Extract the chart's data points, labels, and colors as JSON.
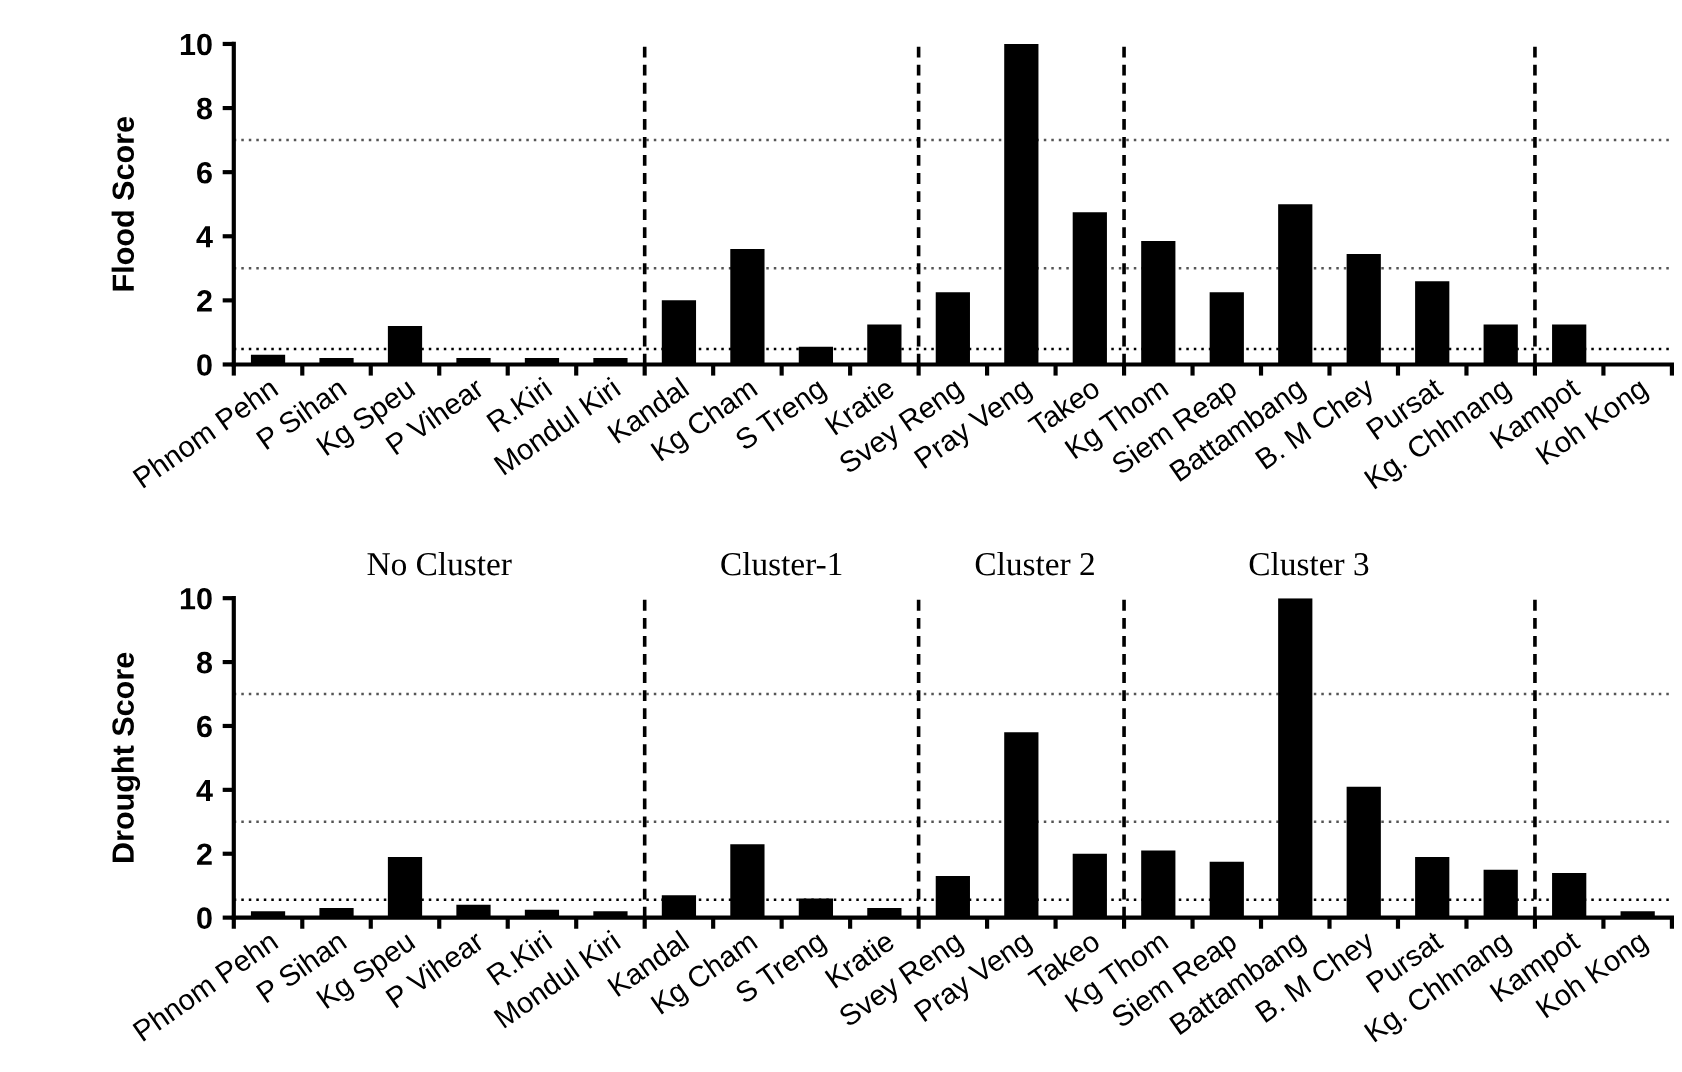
{
  "chart_data": [
    {
      "type": "bar",
      "ylabel": "Flood Score",
      "categories": [
        "Phnom Pehn",
        "P Sihan",
        "Kg Speu",
        "P Vihear",
        "R.Kiri",
        "Mondul Kiri",
        "Kandal",
        "Kg Cham",
        "S Treng",
        "Kratie",
        "Svey Reng",
        "Pray Veng",
        "Takeo",
        "Kg Thom",
        "Siem Reap",
        "Battambang",
        "B. M Chey",
        "Pursat",
        "Kg. Chhnang",
        "Kampot",
        "Koh Kong"
      ],
      "values": [
        0.3,
        0.2,
        1.2,
        0.2,
        0.2,
        0.2,
        2.0,
        3.6,
        0.55,
        1.25,
        2.25,
        10.0,
        4.75,
        3.85,
        2.25,
        5.0,
        3.45,
        2.6,
        1.25,
        1.25,
        0.05
      ],
      "color": "#000000",
      "ylim": [
        0,
        10
      ],
      "yticks": [
        0,
        2,
        4,
        6,
        8,
        10
      ],
      "grid": false,
      "ref_lines": [
        {
          "axis": "y",
          "value": 7,
          "line_style": "dotted",
          "color": "#555555"
        },
        {
          "axis": "y",
          "value": 3,
          "line_style": "dotted",
          "color": "#555555"
        },
        {
          "axis": "y",
          "value": 0.48,
          "line_style": "dotted",
          "color": "#000000"
        }
      ]
    },
    {
      "type": "bar",
      "ylabel": "Drought Score",
      "categories": [
        "Phnom Pehn",
        "P Sihan",
        "Kg Speu",
        "P Vihear",
        "R.Kiri",
        "Mondul Kiri",
        "Kandal",
        "Kg Cham",
        "S Treng",
        "Kratie",
        "Svey Reng",
        "Pray Veng",
        "Takeo",
        "Kg Thom",
        "Siem Reap",
        "Battambang",
        "B. M Chey",
        "Pursat",
        "Kg. Chhnang",
        "Kampot",
        "Koh Kong"
      ],
      "values": [
        0.2,
        0.3,
        1.9,
        0.4,
        0.25,
        0.2,
        0.7,
        2.3,
        0.6,
        0.3,
        1.3,
        5.8,
        2.0,
        2.1,
        1.75,
        10.0,
        4.1,
        1.9,
        1.5,
        1.4,
        0.2
      ],
      "color": "#000000",
      "ylim": [
        0,
        10
      ],
      "yticks": [
        0,
        2,
        4,
        6,
        8,
        10
      ],
      "grid": false,
      "annotations": [
        "No Cluster",
        "Cluster-1",
        "Cluster 2",
        "Cluster 3"
      ],
      "ref_lines": [
        {
          "axis": "y",
          "value": 7,
          "line_style": "dotted",
          "color": "#555555"
        },
        {
          "axis": "y",
          "value": 3,
          "line_style": "dotted",
          "color": "#555555"
        },
        {
          "axis": "y",
          "value": 0.56,
          "line_style": "dotted",
          "color": "#000000"
        }
      ]
    }
  ]
}
